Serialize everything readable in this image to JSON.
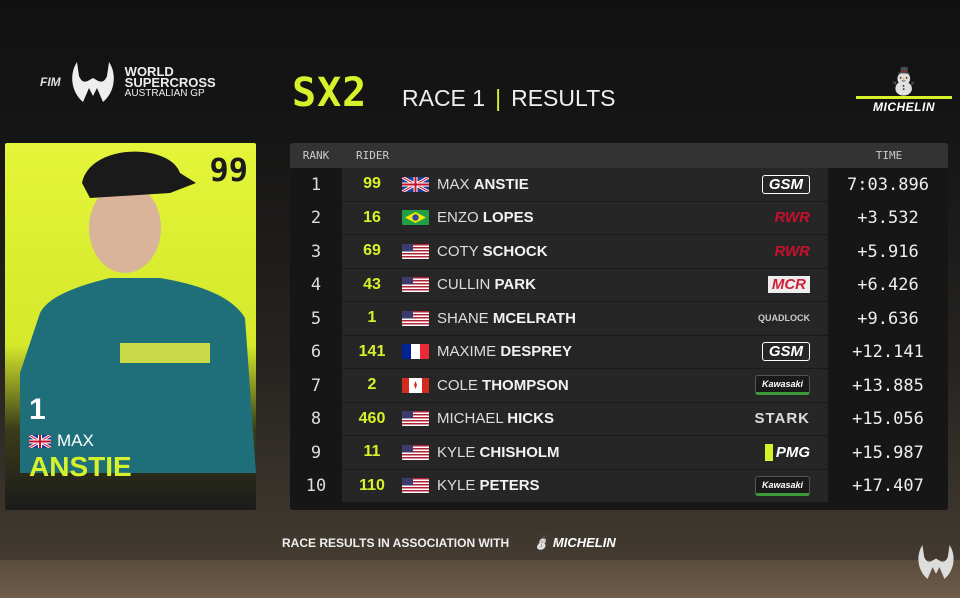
{
  "header": {
    "fim": "FIM",
    "brand_line1": "WORLD",
    "brand_line2": "SUPERCROSS",
    "brand_line3": "AUSTRALIAN GP",
    "class": "SX2",
    "race": "RACE 1",
    "separator": "|",
    "results": "RESULTS",
    "sponsor": "MICHELIN"
  },
  "rider_card": {
    "number": "99",
    "position": "1",
    "first_name": "MAX",
    "last_name": "ANSTIE",
    "flag": "GB"
  },
  "table": {
    "columns": {
      "rank": "RANK",
      "rider": "RIDER",
      "time": "TIME"
    },
    "rows": [
      {
        "rank": "1",
        "bib": "99",
        "flag": "GB",
        "first": "MAX",
        "last": "ANSTIE",
        "team": "GSM",
        "time": "7:03.896"
      },
      {
        "rank": "2",
        "bib": "16",
        "flag": "BR",
        "first": "ENZO",
        "last": "LOPES",
        "team": "RWR",
        "time": "+3.532"
      },
      {
        "rank": "3",
        "bib": "69",
        "flag": "US",
        "first": "COTY",
        "last": "SCHOCK",
        "team": "RWR",
        "time": "+5.916"
      },
      {
        "rank": "4",
        "bib": "43",
        "flag": "US",
        "first": "CULLIN",
        "last": "PARK",
        "team": "MCR",
        "time": "+6.426"
      },
      {
        "rank": "5",
        "bib": "1",
        "flag": "US",
        "first": "SHANE",
        "last": "MCELRATH",
        "team": "QUADLOCK",
        "time": "+9.636"
      },
      {
        "rank": "6",
        "bib": "141",
        "flag": "FR",
        "first": "MAXIME",
        "last": "DESPREY",
        "team": "GSM",
        "time": "+12.141"
      },
      {
        "rank": "7",
        "bib": "2",
        "flag": "CA",
        "first": "COLE",
        "last": "THOMPSON",
        "team": "Kawasaki",
        "time": "+13.885"
      },
      {
        "rank": "8",
        "bib": "460",
        "flag": "US",
        "first": "MICHAEL",
        "last": "HICKS",
        "team": "STARK",
        "time": "+15.056"
      },
      {
        "rank": "9",
        "bib": "11",
        "flag": "US",
        "first": "KYLE",
        "last": "CHISHOLM",
        "team": "PMG",
        "time": "+15.987"
      },
      {
        "rank": "10",
        "bib": "110",
        "flag": "US",
        "first": "KYLE",
        "last": "PETERS",
        "team": "Kawasaki",
        "time": "+17.407"
      }
    ]
  },
  "footer": {
    "text": "RACE RESULTS IN ASSOCIATION WITH",
    "sponsor": "MICHELIN"
  },
  "colors": {
    "accent": "#d7f22a",
    "panel": "#262626",
    "background": "#121212"
  }
}
